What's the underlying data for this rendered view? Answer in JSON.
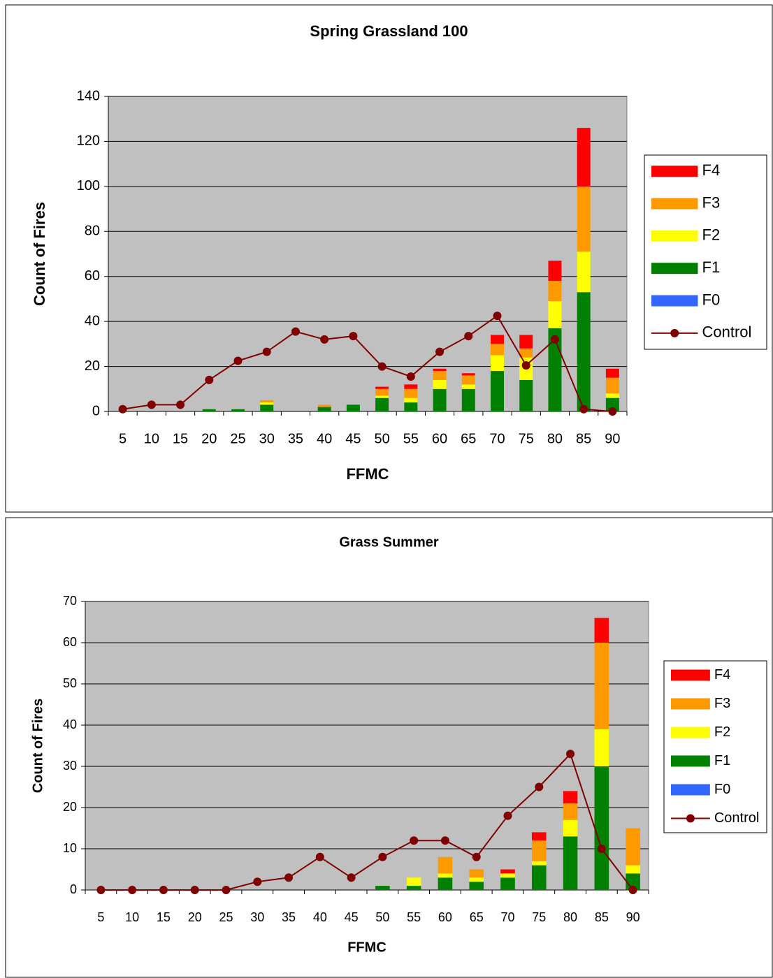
{
  "chart_data": [
    {
      "type": "combo",
      "title": "Spring Grassland 100",
      "x_label": "FFMC",
      "y_label": "Count of Fires",
      "categories": [
        "5",
        "10",
        "15",
        "20",
        "25",
        "30",
        "35",
        "40",
        "45",
        "50",
        "55",
        "60",
        "65",
        "70",
        "75",
        "80",
        "85",
        "90"
      ],
      "ylim": [
        0,
        140
      ],
      "yticks": [
        0,
        20,
        40,
        60,
        80,
        100,
        120,
        140
      ],
      "grid": true,
      "stacked": true,
      "legend": "right",
      "series": [
        {
          "name": "F0",
          "color": "#3366ff",
          "type": "bar",
          "values": [
            0,
            0,
            0,
            0,
            0,
            0,
            0,
            0,
            0,
            0,
            0,
            0,
            0,
            0,
            0,
            0,
            0,
            0
          ]
        },
        {
          "name": "F1",
          "color": "#008000",
          "type": "bar",
          "values": [
            0,
            0,
            0,
            1,
            1,
            3,
            0,
            2,
            3,
            6,
            4,
            10,
            10,
            18,
            14,
            37,
            53,
            6
          ]
        },
        {
          "name": "F2",
          "color": "#ffff00",
          "type": "bar",
          "values": [
            0,
            0,
            0,
            0,
            0,
            1,
            0,
            0,
            0,
            1,
            2,
            4,
            2,
            7,
            10,
            12,
            18,
            2
          ]
        },
        {
          "name": "F3",
          "color": "#ff9900",
          "type": "bar",
          "values": [
            0,
            0,
            0,
            0,
            0,
            1,
            0,
            1,
            0,
            3,
            4,
            4,
            4,
            5,
            4,
            9,
            29,
            7
          ]
        },
        {
          "name": "F4",
          "color": "#ff0000",
          "type": "bar",
          "values": [
            0,
            0,
            0,
            0,
            0,
            0,
            0,
            0,
            0,
            1,
            2,
            1,
            1,
            4,
            6,
            9,
            26,
            4
          ]
        },
        {
          "name": "Control",
          "color": "#800000",
          "type": "line",
          "values": [
            1,
            3,
            3,
            14,
            22.5,
            26.5,
            35.5,
            32,
            33.5,
            20,
            15.5,
            26.5,
            33.5,
            42.5,
            20.5,
            32,
            1,
            0
          ]
        }
      ]
    },
    {
      "type": "combo",
      "title": "Grass Summer",
      "x_label": "FFMC",
      "y_label": "Count of Fires",
      "categories": [
        "5",
        "10",
        "15",
        "20",
        "25",
        "30",
        "35",
        "40",
        "45",
        "50",
        "55",
        "60",
        "65",
        "70",
        "75",
        "80",
        "85",
        "90"
      ],
      "ylim": [
        0,
        70
      ],
      "yticks": [
        0,
        10,
        20,
        30,
        40,
        50,
        60,
        70
      ],
      "grid": true,
      "stacked": true,
      "legend": "right",
      "series": [
        {
          "name": "F0",
          "color": "#3366ff",
          "type": "bar",
          "values": [
            0,
            0,
            0,
            0,
            0,
            0,
            0,
            0,
            0,
            0,
            0,
            0,
            0,
            0,
            0,
            0,
            0,
            0
          ]
        },
        {
          "name": "F1",
          "color": "#008000",
          "type": "bar",
          "values": [
            0,
            0,
            0,
            0,
            0,
            0,
            0,
            0,
            0,
            1,
            1,
            3,
            2,
            3,
            6,
            13,
            30,
            4
          ]
        },
        {
          "name": "F2",
          "color": "#ffff00",
          "type": "bar",
          "values": [
            0,
            0,
            0,
            0,
            0,
            0,
            0,
            0,
            0,
            0,
            2,
            1,
            1,
            1,
            1,
            4,
            9,
            2
          ]
        },
        {
          "name": "F3",
          "color": "#ff9900",
          "type": "bar",
          "values": [
            0,
            0,
            0,
            0,
            0,
            0,
            0,
            0,
            0,
            0,
            0,
            4,
            2,
            0,
            5,
            4,
            21,
            9
          ]
        },
        {
          "name": "F4",
          "color": "#ff0000",
          "type": "bar",
          "values": [
            0,
            0,
            0,
            0,
            0,
            0,
            0,
            0,
            0,
            0,
            0,
            0,
            0,
            1,
            2,
            3,
            6,
            0
          ]
        },
        {
          "name": "Control",
          "color": "#800000",
          "type": "line",
          "values": [
            0,
            0,
            0,
            0,
            0,
            2,
            3,
            8,
            3,
            8,
            12,
            12,
            8,
            18,
            25,
            33,
            10,
            0
          ]
        }
      ]
    }
  ]
}
